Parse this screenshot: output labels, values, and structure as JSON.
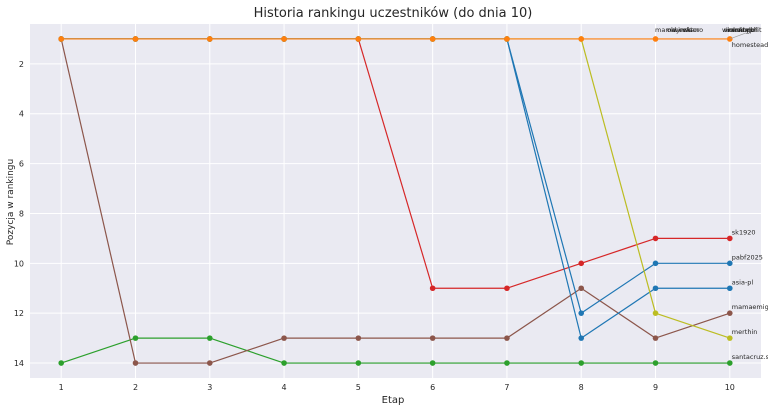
{
  "chart_data": {
    "type": "line",
    "title": "Historia rankingu uczestników (do dnia 10)",
    "xlabel": "Etap",
    "ylabel": "Pozycja w rankingu",
    "x": [
      1,
      2,
      3,
      4,
      5,
      6,
      7,
      8,
      9,
      10
    ],
    "xticks": [
      "1",
      "2",
      "3",
      "4",
      "5",
      "6",
      "7",
      "8",
      "9",
      "10"
    ],
    "yticks": [
      "2",
      "4",
      "6",
      "8",
      "10",
      "12",
      "14"
    ],
    "ytick_values": [
      2,
      4,
      6,
      8,
      10,
      12,
      14
    ],
    "ylim": [
      14.6,
      0.4
    ],
    "y_inverted": true,
    "grid": true,
    "background": "#eaeaf2",
    "series": [
      {
        "color": "#2ca02c",
        "values": [
          14,
          13,
          13,
          14,
          14,
          14,
          14,
          14,
          14,
          14
        ]
      },
      {
        "color": "#8c564b",
        "values": [
          1,
          14,
          14,
          13,
          13,
          13,
          13,
          11,
          13,
          12
        ]
      },
      {
        "color": "#d62728",
        "values": [
          1,
          1,
          1,
          1,
          1,
          11,
          11,
          10,
          9,
          9
        ]
      },
      {
        "color": "#1f77b4",
        "values": [
          1,
          1,
          1,
          1,
          1,
          1,
          1,
          12,
          10,
          10
        ]
      },
      {
        "color": "#1f77b4",
        "values": [
          1,
          1,
          1,
          1,
          1,
          1,
          1,
          13,
          11,
          11
        ]
      },
      {
        "color": "#bcbd22",
        "values": [
          1,
          1,
          1,
          1,
          1,
          1,
          1,
          1,
          12,
          13
        ]
      },
      {
        "color": "#ff7f0e",
        "values": [
          1,
          1,
          1,
          1,
          1,
          1,
          1,
          1,
          1,
          1
        ]
      }
    ],
    "end_labels": [
      {
        "text": "sk1920",
        "y": 9
      },
      {
        "text": "pabf2025",
        "y": 10
      },
      {
        "text": "asia-pl",
        "y": 11
      },
      {
        "text": "mamaemigrantefit",
        "y": 12
      },
      {
        "text": "merthin",
        "y": 13
      },
      {
        "text": "santacruz.sports",
        "y": 14
      },
      {
        "text": "homesteadit",
        "y": 1
      }
    ],
    "top_labels": [
      "mama",
      "olwinskano",
      "dyrektor",
      "ewa",
      "wiolenty",
      "marcingo",
      "ineskorph",
      "mentalbfit"
    ]
  }
}
